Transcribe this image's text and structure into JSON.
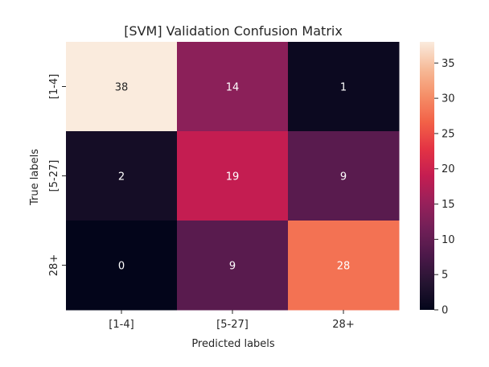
{
  "chart_data": {
    "type": "heatmap",
    "title": "[SVM] Validation Confusion Matrix",
    "xlabel": "Predicted labels",
    "ylabel": "True labels",
    "x_categories": [
      "[1-4]",
      "[5-27]",
      "28+"
    ],
    "y_categories": [
      "[1-4]",
      "[5-27]",
      "28+"
    ],
    "values": [
      [
        38,
        14,
        1
      ],
      [
        2,
        19,
        9
      ],
      [
        0,
        9,
        28
      ]
    ],
    "colorbar": {
      "range": [
        0,
        38
      ],
      "ticks": [
        0,
        5,
        10,
        15,
        20,
        25,
        30,
        35
      ],
      "colormap": "rocket"
    },
    "grid": false,
    "legend": "colorbar-right"
  }
}
